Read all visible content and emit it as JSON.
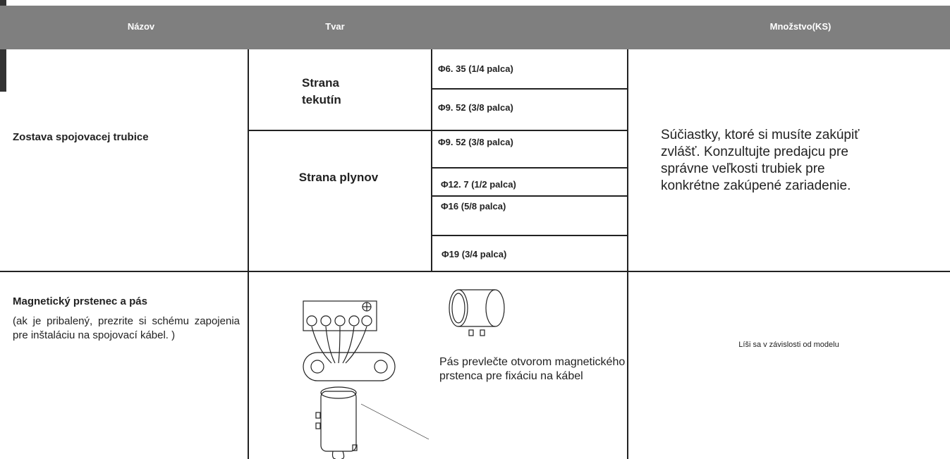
{
  "table": {
    "headers": [
      "Názov",
      "Tvar",
      "Množstvo(KS)"
    ],
    "rows": [
      {
        "name": "Zostava spojovacej trubice",
        "groups": [
          {
            "label": "Strana tekutín",
            "sizes": [
              "Φ6. 35 (1/4 palca)",
              "Φ9. 52 (3/8 palca)"
            ]
          },
          {
            "label": "Strana plynov",
            "sizes": [
              "Φ9. 52 (3/8 palca)",
              "Φ12. 7 (1/2 palca)",
              "Φ16 (5/8 palca)",
              "Φ19 (3/4 palca)"
            ]
          }
        ],
        "quantity": "Súčiastky, ktoré si musíte zakúpiť zvlášť. Konzultujte predajcu pre správne veľkosti trubiek pre konkrétne zakúpené zariadenie."
      },
      {
        "name": "Magnetický prstenec a pás",
        "note": "(ak je pribalený, prezrite si schému zapojenia pre inštaláciu na spojovací kábel. )",
        "caption": "Pás prevlečte otvorom magnetického prstenca pre fixáciu na kábel",
        "quantity": "Líši sa v závislosti od modelu"
      }
    ]
  }
}
